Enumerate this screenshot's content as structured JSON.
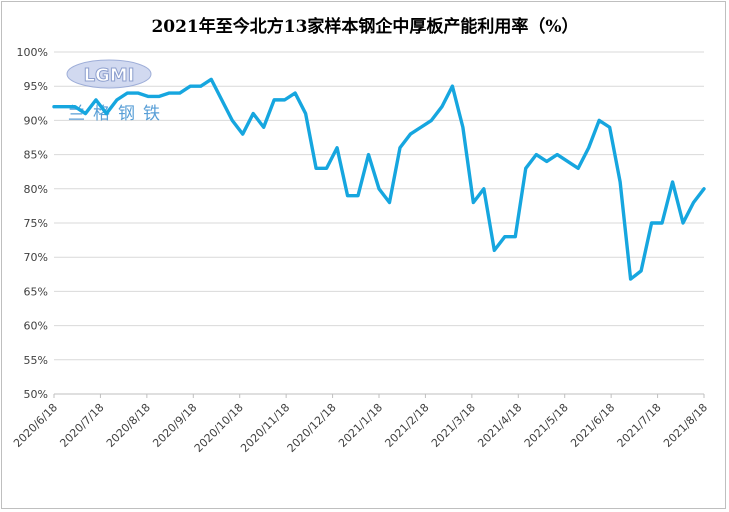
{
  "colors": {
    "line": "#16a6df",
    "watermark": "#6f86c8"
  },
  "watermark": {
    "logo_text": "LGMI",
    "name": "兰格钢铁"
  },
  "chart_data": {
    "type": "line",
    "title": "2021年至今北方13家样本钢企中厚板产能利用率（%）",
    "xlabel": "",
    "ylabel": "",
    "ylim": [
      50,
      100
    ],
    "y_ticks": [
      "50%",
      "55%",
      "60%",
      "65%",
      "70%",
      "75%",
      "80%",
      "85%",
      "90%",
      "95%",
      "100%"
    ],
    "x_tick_labels": [
      "2020/6/18",
      "2020/7/18",
      "2020/8/18",
      "2020/9/18",
      "2020/10/18",
      "2020/11/18",
      "2020/12/18",
      "2021/1/18",
      "2021/2/18",
      "2021/3/18",
      "2021/4/18",
      "2021/5/18",
      "2021/6/18",
      "2021/7/18",
      "2021/8/18"
    ],
    "grid": true,
    "legend": "none",
    "series": [
      {
        "values": [
          92,
          92,
          92,
          91,
          93,
          91,
          93,
          94,
          94,
          93.5,
          93.5,
          94,
          94,
          95,
          95,
          96,
          93,
          90,
          88,
          91,
          89,
          93,
          93,
          94,
          91,
          83,
          83,
          86,
          79,
          79,
          85,
          80,
          78,
          86,
          88,
          89,
          90,
          92,
          95,
          89,
          78,
          80,
          71,
          73,
          73,
          83,
          85,
          84,
          85,
          84,
          83,
          86,
          90,
          89,
          81,
          66.8,
          68,
          75,
          75,
          81,
          75,
          78,
          80
        ]
      }
    ]
  }
}
